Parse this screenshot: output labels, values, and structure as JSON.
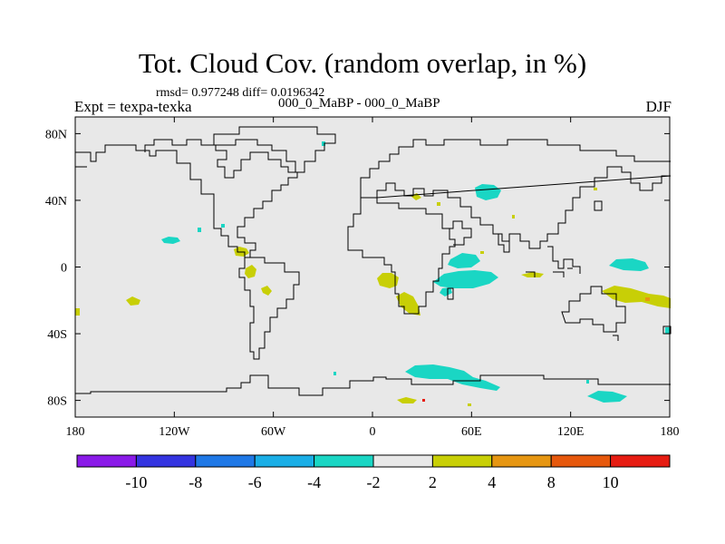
{
  "header": {
    "title": "Tot. Cloud Cov. (random overlap, in %)",
    "stats": "rmsd= 0.977248 diff= 0.0196342",
    "expt": "Expt = texpa-texka",
    "experiment_pair": "000_0_MaBP - 000_0_MaBP",
    "season": "DJF"
  },
  "axes": {
    "x_ticks": [
      {
        "value": -180,
        "label": "180"
      },
      {
        "value": -120,
        "label": "120W"
      },
      {
        "value": -60,
        "label": "60W"
      },
      {
        "value": 0,
        "label": "0"
      },
      {
        "value": 60,
        "label": "60E"
      },
      {
        "value": 120,
        "label": "120E"
      },
      {
        "value": 180,
        "label": "180"
      }
    ],
    "y_ticks": [
      {
        "value": 80,
        "label": "80N"
      },
      {
        "value": 40,
        "label": "40N"
      },
      {
        "value": 0,
        "label": "0"
      },
      {
        "value": -40,
        "label": "40S"
      },
      {
        "value": -80,
        "label": "80S"
      }
    ],
    "lon_range": [
      -180,
      180
    ],
    "lat_range": [
      -90,
      90
    ]
  },
  "colorbar": {
    "colors": [
      "#8a1ae8",
      "#3434e0",
      "#1f78e6",
      "#1aaee6",
      "#1ad6c4",
      "#e8e8e8",
      "#c8cf06",
      "#e69612",
      "#e6580c",
      "#e61c12"
    ],
    "labels": [
      "-10",
      "-8",
      "-6",
      "-4",
      "-2",
      "2",
      "4",
      "8",
      "10"
    ]
  },
  "map_data": {
    "background_color": "#e8e8e8",
    "coastline_color": "#000000",
    "anomaly_patches": [
      {
        "lon": 72,
        "lat": 47,
        "color": "#1ad6c4",
        "desc": "central asia"
      },
      {
        "lon": 60,
        "lat": 5,
        "color": "#1ad6c4",
        "desc": "arabian sea"
      },
      {
        "lon": 55,
        "lat": -10,
        "color": "#1ad6c4",
        "desc": "western indian ocean"
      },
      {
        "lon": 157,
        "lat": 1,
        "color": "#1ad6c4",
        "desc": "west pacific"
      },
      {
        "lon": -122,
        "lat": 17,
        "color": "#1ad6c4",
        "desc": "east pacific"
      },
      {
        "lon": 40,
        "lat": -63,
        "color": "#1ad6c4",
        "desc": "southern ocean"
      },
      {
        "lon": 150,
        "lat": -78,
        "color": "#1ad6c4",
        "desc": "antarctica"
      },
      {
        "lon": 22,
        "lat": -6,
        "color": "#c8cf06",
        "desc": "central africa"
      },
      {
        "lon": 30,
        "lat": -21,
        "color": "#c8cf06",
        "desc": "southern africa"
      },
      {
        "lon": 162,
        "lat": -18,
        "color": "#c8cf06",
        "desc": "south pacific"
      },
      {
        "lon": -85,
        "lat": 10,
        "color": "#c8cf06",
        "desc": "central america"
      },
      {
        "lon": -73,
        "lat": -3,
        "color": "#c8cf06",
        "desc": "amazon"
      },
      {
        "lon": -66,
        "lat": -14,
        "color": "#c8cf06",
        "desc": "bolivia"
      },
      {
        "lon": -155,
        "lat": -19,
        "color": "#c8cf06",
        "desc": "south pacific east"
      },
      {
        "lon": 90,
        "lat": -3,
        "color": "#c8cf06",
        "desc": "eastern indian ocean"
      },
      {
        "lon": 22,
        "lat": -80,
        "color": "#c8cf06",
        "desc": "antarctica south"
      }
    ]
  }
}
